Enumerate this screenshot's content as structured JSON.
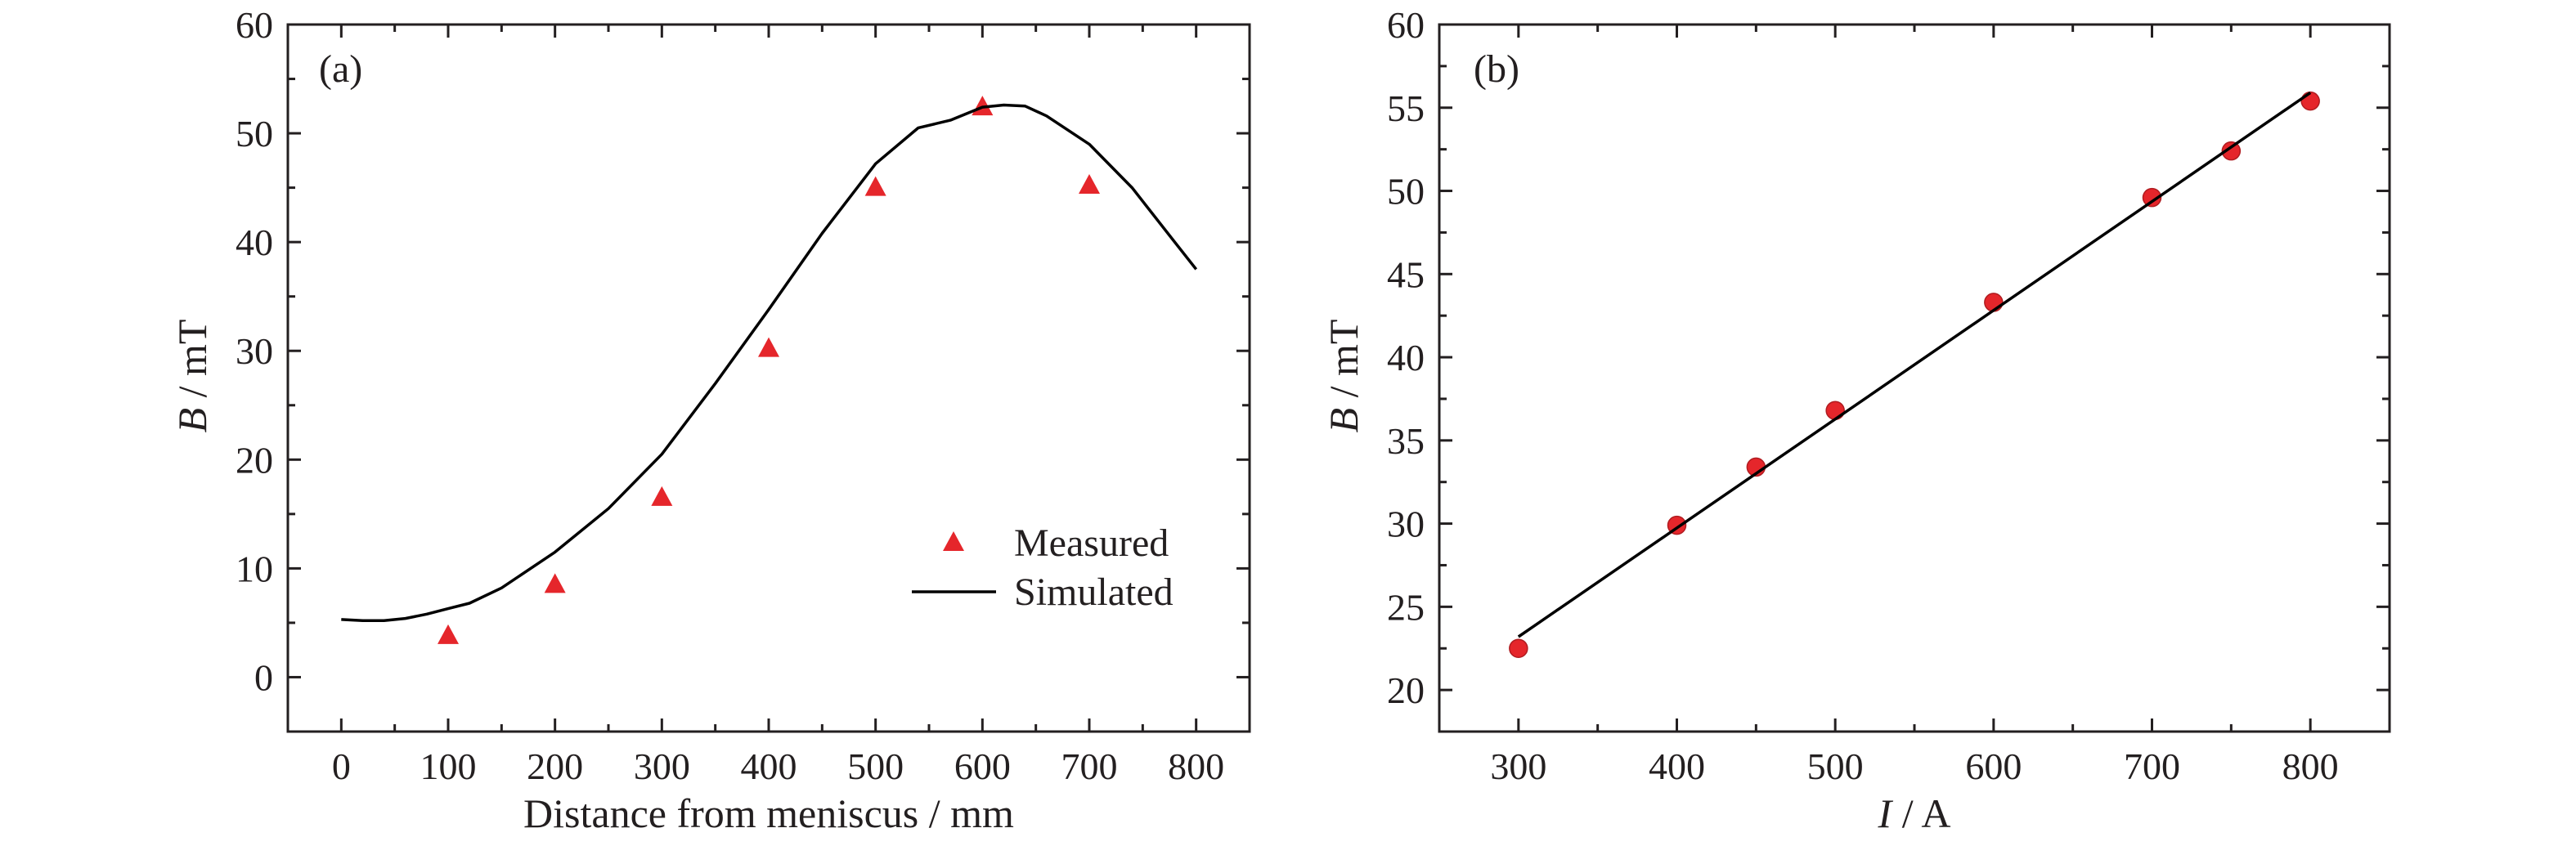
{
  "chart_data": [
    {
      "type": "line",
      "panel_label": "(a)",
      "xlabel": "Distance from meniscus / mm",
      "ylabel_italic": "B",
      "ylabel_rest": " / mT",
      "xlim": [
        -50,
        850
      ],
      "ylim": [
        -5,
        60
      ],
      "xticks": [
        0,
        100,
        200,
        300,
        400,
        500,
        600,
        700,
        800
      ],
      "yticks": [
        0,
        10,
        20,
        30,
        40,
        50,
        60
      ],
      "legend": {
        "position": "lower-right",
        "entries": [
          "Measured",
          "Simulated"
        ]
      },
      "series": [
        {
          "name": "Measured",
          "kind": "scatter",
          "marker": "triangle",
          "color": "#e5262b",
          "x": [
            100,
            200,
            300,
            400,
            500,
            600,
            700
          ],
          "y": [
            3.8,
            8.5,
            16.5,
            30.2,
            45.0,
            52.4,
            45.2
          ]
        },
        {
          "name": "Simulated",
          "kind": "line",
          "color": "#000000",
          "x": [
            0,
            20,
            40,
            60,
            80,
            100,
            120,
            150,
            200,
            250,
            300,
            350,
            400,
            450,
            500,
            540,
            570,
            600,
            620,
            640,
            660,
            700,
            740,
            780,
            800
          ],
          "y": [
            5.3,
            5.2,
            5.2,
            5.4,
            5.8,
            6.3,
            6.8,
            8.2,
            11.5,
            15.5,
            20.5,
            27.0,
            33.8,
            40.8,
            47.2,
            50.5,
            51.2,
            52.4,
            52.6,
            52.5,
            51.6,
            49.0,
            45.0,
            40.0,
            37.5
          ]
        }
      ]
    },
    {
      "type": "scatter",
      "panel_label": "(b)",
      "xlabel_italic": "I",
      "xlabel_rest": " / A",
      "ylabel_italic": "B",
      "ylabel_rest": " / mT",
      "xlim": [
        250,
        850
      ],
      "ylim": [
        17.5,
        60
      ],
      "xticks": [
        300,
        400,
        500,
        600,
        700,
        800
      ],
      "yticks": [
        20,
        25,
        30,
        35,
        40,
        45,
        50,
        55,
        60
      ],
      "series": [
        {
          "kind": "scatter",
          "marker": "circle",
          "color": "#e5262b",
          "x": [
            300,
            400,
            450,
            500,
            600,
            700,
            750,
            800
          ],
          "y": [
            22.5,
            29.9,
            33.4,
            36.8,
            43.3,
            49.6,
            52.4,
            55.4
          ]
        },
        {
          "kind": "line",
          "color": "#000000",
          "x": [
            300,
            800
          ],
          "y": [
            23.2,
            55.9
          ]
        }
      ]
    }
  ]
}
